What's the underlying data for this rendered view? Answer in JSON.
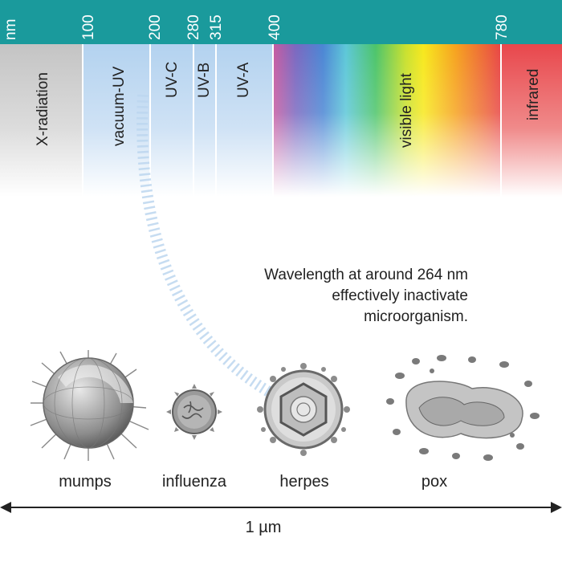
{
  "axis": {
    "unit": "nm",
    "ticks": [
      "100",
      "200",
      "280",
      "315",
      "400",
      "780"
    ]
  },
  "bands": {
    "x_radiation": "X-radiation",
    "vacuum_uv": "vacuum-UV",
    "uv_c": "UV-C",
    "uv_b": "UV-B",
    "uv_a": "UV-A",
    "visible": "visible light",
    "infrared": "infrared"
  },
  "caption": {
    "line1": "Wavelength at around 264 nm",
    "line2": "effectively inactivate",
    "line3": "microorganism."
  },
  "viruses": {
    "mumps": "mumps",
    "influenza": "influenza",
    "herpes": "herpes",
    "pox": "pox"
  },
  "scale_label": "1 µm",
  "colors": {
    "header": "#1a9a9c",
    "x_radiation": "#c8c8c8",
    "uv": "#b6d4f0",
    "infrared": "#e8474c"
  },
  "icons": [
    "mumps-virus-icon",
    "influenza-virus-icon",
    "herpes-virus-icon",
    "pox-virus-icon"
  ]
}
